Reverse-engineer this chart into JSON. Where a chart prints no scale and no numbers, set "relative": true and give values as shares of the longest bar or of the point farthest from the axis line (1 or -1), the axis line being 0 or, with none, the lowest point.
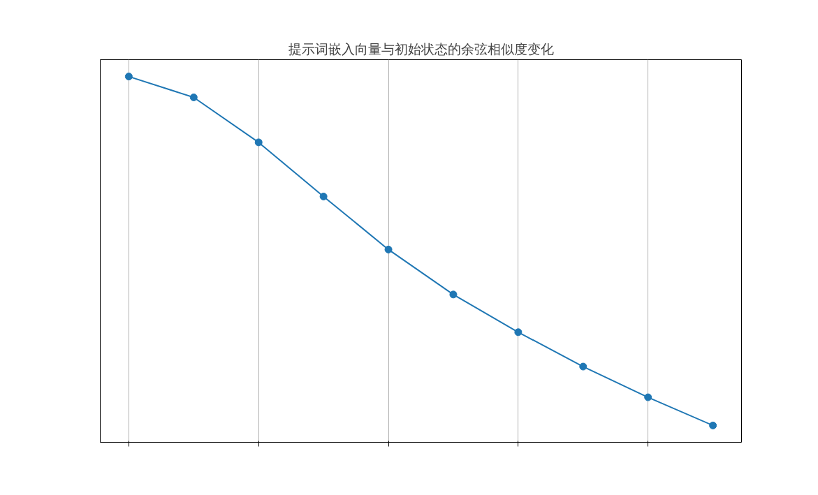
{
  "chart_data": {
    "type": "line",
    "title": "提示词嵌入向量与初始状态的余弦相似度变化",
    "categories": [
      null,
      null,
      null,
      null,
      null,
      null,
      null,
      null,
      null,
      null
    ],
    "series": [
      {
        "color": "#1f77b4",
        "values": [
          1,
          0.943,
          0.82,
          0.672,
          0.527,
          0.404,
          0.301,
          0.207,
          0.123,
          0.046
        ]
      }
    ],
    "relative": true,
    "marker": "circle",
    "line_style": "solid",
    "grid": true
  }
}
